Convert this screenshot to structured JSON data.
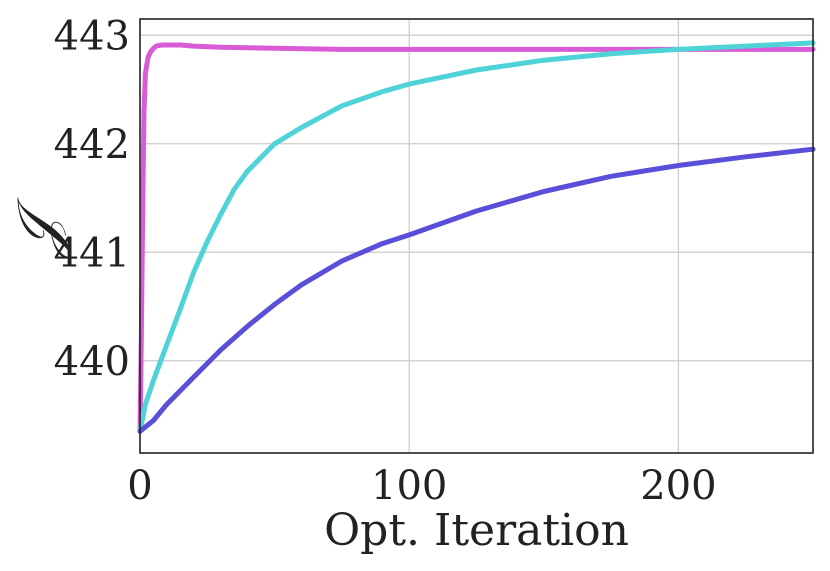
{
  "chart_data": {
    "type": "line",
    "title": "",
    "xlabel": "Opt. Iteration",
    "ylabel": "𝒥",
    "xlim": [
      0,
      250
    ],
    "ylim": [
      439.15,
      443.15
    ],
    "xticks": [
      0,
      100,
      200
    ],
    "yticks": [
      440,
      441,
      442,
      443
    ],
    "grid": true,
    "legend": "none",
    "series": [
      {
        "color": "#da5bd6",
        "x": [
          0,
          0.5,
          1,
          1.5,
          2,
          3,
          4,
          5,
          6,
          8,
          10,
          15,
          20,
          30,
          50,
          75,
          100,
          150,
          200,
          250
        ],
        "y": [
          439.35,
          440.2,
          441.4,
          442.3,
          442.65,
          442.8,
          442.85,
          442.88,
          442.9,
          442.91,
          442.91,
          442.91,
          442.9,
          442.89,
          442.88,
          442.87,
          442.87,
          442.87,
          442.87,
          442.87
        ]
      },
      {
        "color": "#4fd3d8",
        "x": [
          0,
          2,
          5,
          10,
          15,
          20,
          25,
          30,
          35,
          40,
          50,
          60,
          75,
          90,
          100,
          125,
          150,
          175,
          200,
          225,
          250
        ],
        "y": [
          439.35,
          439.6,
          439.82,
          440.15,
          440.48,
          440.82,
          441.1,
          441.35,
          441.58,
          441.75,
          442.0,
          442.15,
          442.35,
          442.48,
          442.55,
          442.68,
          442.77,
          442.83,
          442.87,
          442.9,
          442.93
        ]
      },
      {
        "color": "#5a4fd8",
        "x": [
          0,
          5,
          10,
          20,
          30,
          40,
          50,
          60,
          75,
          90,
          100,
          125,
          150,
          175,
          200,
          225,
          250
        ],
        "y": [
          439.35,
          439.45,
          439.6,
          439.85,
          440.1,
          440.32,
          440.52,
          440.7,
          440.92,
          441.08,
          441.16,
          441.38,
          441.56,
          441.7,
          441.8,
          441.88,
          441.95
        ]
      }
    ]
  }
}
